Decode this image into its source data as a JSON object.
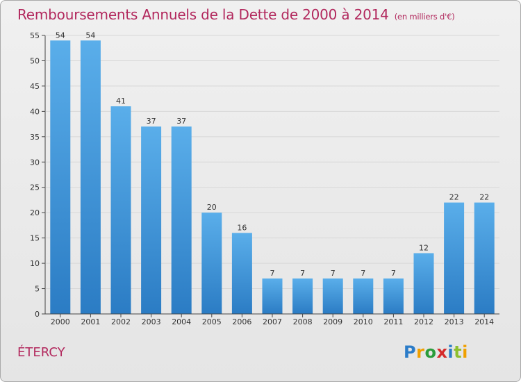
{
  "header": {
    "title": "Remboursements Annuels de la Dette de 2000 à 2014",
    "unit": "(en milliers d'€)"
  },
  "footer": {
    "commune": "ÉTERCY",
    "brand": "Proxiti"
  },
  "colors": {
    "title": "#b2285d",
    "bar_light": "#5aaeea",
    "bar_dark": "#2b7cc4",
    "axis": "#444444",
    "grid": "#d7d7d7"
  },
  "chart_data": {
    "type": "bar",
    "categories": [
      "2000",
      "2001",
      "2002",
      "2003",
      "2004",
      "2005",
      "2006",
      "2007",
      "2008",
      "2009",
      "2010",
      "2011",
      "2012",
      "2013",
      "2014"
    ],
    "values": [
      54,
      54,
      41,
      37,
      37,
      20,
      16,
      7,
      7,
      7,
      7,
      7,
      12,
      22,
      22
    ],
    "title": "Remboursements Annuels de la Dette de 2000 à 2014",
    "xlabel": "",
    "ylabel": "",
    "ylim": [
      0,
      55
    ],
    "yticks": [
      0,
      5,
      10,
      15,
      20,
      25,
      30,
      35,
      40,
      45,
      50,
      55
    ],
    "grid": true,
    "legend": "none"
  }
}
